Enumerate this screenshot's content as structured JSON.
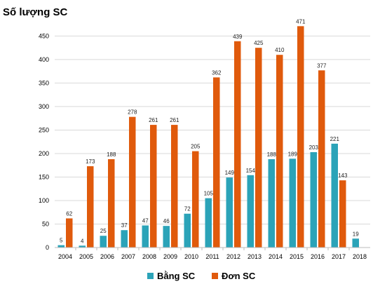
{
  "chart_data": {
    "type": "bar",
    "ylabel": "Số lượng SC",
    "xlabel": "",
    "categories": [
      "2004",
      "2005",
      "2006",
      "2007",
      "2008",
      "2009",
      "2010",
      "2011",
      "2012",
      "2013",
      "2014",
      "2015",
      "2016",
      "2017",
      "2018"
    ],
    "series": [
      {
        "name": "Bằng SC",
        "color": "#2ba3b8",
        "values": [
          5,
          4,
          25,
          37,
          47,
          46,
          72,
          105,
          149,
          154,
          188,
          189,
          203,
          221,
          19
        ]
      },
      {
        "name": "Đơn SC",
        "color": "#e05a0c",
        "values": [
          62,
          173,
          188,
          278,
          261,
          261,
          205,
          362,
          439,
          425,
          410,
          471,
          377,
          143,
          null
        ]
      }
    ],
    "ylim": [
      0,
      470
    ],
    "yticks": [
      0,
      50,
      100,
      150,
      200,
      250,
      300,
      350,
      400,
      450
    ],
    "grid": true,
    "legend_position": "bottom"
  }
}
